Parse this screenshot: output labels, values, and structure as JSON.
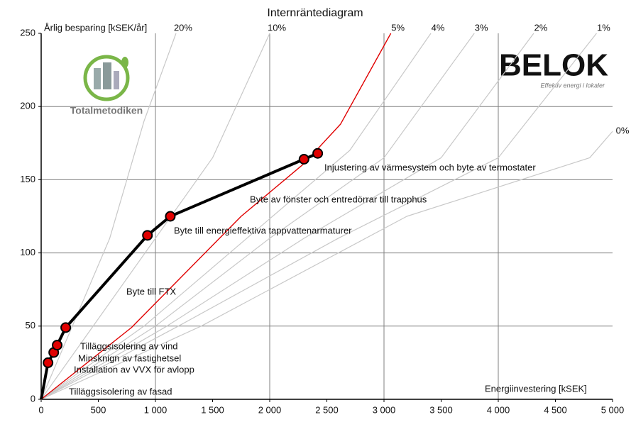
{
  "chart_data": {
    "type": "line",
    "title": "Internräntediagram",
    "y_label": "Årlig besparing [kSEK/år]",
    "x_label": "Energiinvestering [kSEK]",
    "logos": {
      "left": "Totalmetodiken",
      "right": "BELOK",
      "right_sub": "Effektiv energi i lokaler"
    },
    "xlim": [
      0,
      5000
    ],
    "ylim": [
      0,
      250
    ],
    "xticks": [
      0,
      500,
      {
        "value": 1000,
        "label": "1 000"
      },
      {
        "value": 1500,
        "label": "1 500"
      },
      {
        "value": 2000,
        "label": "2 000"
      },
      {
        "value": 2500,
        "label": "2 500"
      },
      {
        "value": 3000,
        "label": "3 000"
      },
      {
        "value": 3500,
        "label": "3 500"
      },
      {
        "value": 4000,
        "label": "4 000"
      },
      {
        "value": 4500,
        "label": "4 500"
      },
      {
        "value": 5000,
        "label": "5 000"
      }
    ],
    "yticks": [
      0,
      50,
      100,
      150,
      200,
      250
    ],
    "xgrid": [
      1000,
      2000,
      3000,
      4000
    ],
    "ygrid": [
      50,
      100,
      150,
      200
    ],
    "series": [
      {
        "name": "20%",
        "color": "#c8c8c8",
        "x": [
          0,
          600,
          900,
          1180
        ],
        "values": [
          0,
          110,
          190,
          250
        ]
      },
      {
        "name": "10%",
        "color": "#c8c8c8",
        "x": [
          0,
          1000,
          1500,
          2000
        ],
        "values": [
          0,
          110,
          165,
          250
        ]
      },
      {
        "name": "4%",
        "color": "#c8c8c8",
        "x": [
          0,
          900,
          1800,
          2700,
          3410
        ],
        "values": [
          0,
          50,
          110,
          170,
          250
        ]
      },
      {
        "name": "3%",
        "color": "#c8c8c8",
        "x": [
          0,
          1000,
          2000,
          3000,
          3790
        ],
        "values": [
          0,
          50,
          110,
          165,
          250
        ]
      },
      {
        "name": "2%",
        "color": "#c8c8c8",
        "x": [
          0,
          1100,
          2300,
          3500,
          4310
        ],
        "values": [
          0,
          50,
          110,
          165,
          250
        ]
      },
      {
        "name": "1%",
        "color": "#c8c8c8",
        "x": [
          0,
          1200,
          2600,
          4000,
          4860
        ],
        "values": [
          0,
          50,
          110,
          165,
          250
        ]
      },
      {
        "name": "0%",
        "color": "#c8c8c8",
        "x": [
          0,
          1400,
          3200,
          4800,
          5000
        ],
        "values": [
          0,
          50,
          125,
          165,
          183
        ]
      },
      {
        "name": "5%",
        "color": "#e00000",
        "x": [
          0,
          790,
          1750,
          2300,
          2620,
          3060
        ],
        "values": [
          0,
          49,
          125,
          161,
          188,
          250
        ]
      },
      {
        "color": "#000000",
        "markers": true,
        "x": [
          0,
          60,
          110,
          140,
          215,
          930,
          1130,
          2300,
          2420
        ],
        "values": [
          0,
          25,
          32,
          37,
          49,
          112,
          125,
          164,
          168
        ]
      }
    ],
    "annotations": [
      "Injustering av värmesystem och byte av termostater",
      "Byte av fönster och entredörrar till trapphus",
      "Byte till energieffektiva tappvattenarmaturer",
      "Byte till FTX",
      "Tilläggsisolering av vind",
      "Minsknign av fastighetsel",
      "Installation av VVX för avlopp",
      "Tilläggsisolering av fasad"
    ]
  }
}
